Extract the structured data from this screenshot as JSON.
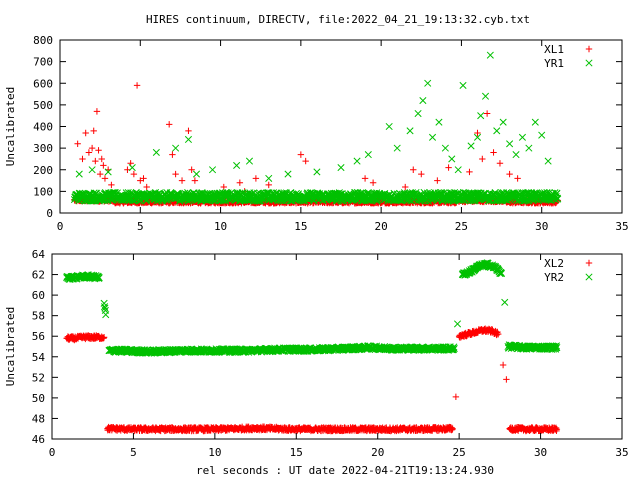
{
  "title": "HIRES continuum, DIRECTV, file:2022_04_21_19:13:32.cyb.txt",
  "colors": {
    "series1": "#ff0000",
    "series2": "#00c000",
    "axis": "#000000"
  },
  "chart_data": [
    {
      "type": "scatter",
      "title": "HIRES continuum, DIRECTV, file:2022_04_21_19:13:32.cyb.txt",
      "xlabel": "",
      "ylabel": "Uncalibrated",
      "xlim": [
        0,
        35
      ],
      "ylim": [
        0,
        800
      ],
      "xticks": [
        0,
        5,
        10,
        15,
        20,
        25,
        30,
        35
      ],
      "yticks": [
        0,
        100,
        200,
        300,
        400,
        500,
        600,
        700,
        800
      ],
      "grid": false,
      "legend_position": "top-right",
      "series": [
        {
          "name": "XL1",
          "marker": "+",
          "color": "#ff0000",
          "baseline_segments": [
            {
              "x_start": 0.9,
              "x_end": 3.3,
              "y": 60
            },
            {
              "x_start": 3.3,
              "x_end": 24.7,
              "y": 52
            },
            {
              "x_start": 24.7,
              "x_end": 27.8,
              "y": 58
            },
            {
              "x_start": 27.8,
              "x_end": 31.0,
              "y": 52
            }
          ],
          "x": [
            1.1,
            1.4,
            1.6,
            1.8,
            2.0,
            2.1,
            2.2,
            2.3,
            2.4,
            2.5,
            2.6,
            2.7,
            2.8,
            3.0,
            3.2,
            4.2,
            4.4,
            4.6,
            4.8,
            5.0,
            5.2,
            5.4,
            6.8,
            7.0,
            7.2,
            7.6,
            8.0,
            8.2,
            8.4,
            10.2,
            11.2,
            11.5,
            12.2,
            13.0,
            15.0,
            15.3,
            19.0,
            19.5,
            21.5,
            22.0,
            22.5,
            23.5,
            24.2,
            25.5,
            26.0,
            26.3,
            26.6,
            27.0,
            27.4,
            28.0,
            28.5
          ],
          "y": [
            320,
            250,
            370,
            280,
            300,
            380,
            240,
            470,
            290,
            180,
            250,
            220,
            160,
            200,
            130,
            200,
            230,
            180,
            590,
            150,
            160,
            120,
            410,
            270,
            180,
            150,
            380,
            200,
            150,
            120,
            140,
            100,
            160,
            130,
            270,
            240,
            160,
            140,
            120,
            200,
            180,
            150,
            210,
            190,
            370,
            250,
            460,
            280,
            230,
            180,
            160
          ]
        },
        {
          "name": "YR1",
          "marker": "x",
          "color": "#00c000",
          "baseline_segments": [
            {
              "x_start": 0.9,
              "x_end": 31.0,
              "y": 75
            }
          ],
          "x": [
            1.2,
            2.0,
            3.0,
            4.5,
            6.0,
            7.2,
            8.0,
            8.5,
            9.5,
            11.0,
            11.8,
            13.0,
            14.2,
            16.0,
            17.5,
            18.5,
            19.2,
            20.5,
            21.0,
            21.8,
            22.3,
            22.6,
            22.9,
            23.2,
            23.6,
            24.0,
            24.4,
            24.8,
            25.1,
            25.6,
            26.0,
            26.2,
            26.5,
            26.8,
            27.2,
            27.6,
            28.0,
            28.4,
            28.8,
            29.2,
            29.6,
            30.0,
            30.4
          ],
          "y": [
            180,
            200,
            190,
            210,
            280,
            300,
            340,
            180,
            200,
            220,
            240,
            160,
            180,
            190,
            210,
            240,
            270,
            400,
            300,
            380,
            460,
            520,
            600,
            350,
            420,
            300,
            250,
            200,
            590,
            310,
            350,
            450,
            540,
            730,
            380,
            420,
            320,
            270,
            350,
            300,
            420,
            360,
            240
          ]
        }
      ]
    },
    {
      "type": "scatter",
      "title": "",
      "xlabel": "rel seconds : UT date 2022-04-21T19:13:24.930",
      "ylabel": "Uncalibrated",
      "xlim": [
        0,
        35
      ],
      "ylim": [
        46,
        64
      ],
      "xticks": [
        0,
        5,
        10,
        15,
        20,
        25,
        30,
        35
      ],
      "yticks": [
        46,
        48,
        50,
        52,
        54,
        56,
        58,
        60,
        62,
        64
      ],
      "grid": false,
      "legend_position": "top-right",
      "series": [
        {
          "name": "XL2",
          "marker": "+",
          "color": "#ff0000",
          "x": [
            0.9,
            1.4,
            1.9,
            2.4,
            2.9,
            3.2,
            3.4,
            3.7,
            5,
            7.5,
            10,
            12.5,
            15,
            17.5,
            20,
            22.5,
            24.6,
            24.8,
            25.0,
            25.5,
            26.0,
            26.5,
            27.0,
            27.4,
            27.7,
            27.9,
            28.1,
            29,
            30,
            31.0
          ],
          "y": [
            55.8,
            55.8,
            55.9,
            55.9,
            55.9,
            55.9,
            47.0,
            47.0,
            46.95,
            46.95,
            46.95,
            47.05,
            46.95,
            46.95,
            46.95,
            46.95,
            47.0,
            50.1,
            56.0,
            56.2,
            56.4,
            56.6,
            56.5,
            56.2,
            53.2,
            51.8,
            47.0,
            46.95,
            46.95,
            46.95
          ]
        },
        {
          "name": "YR2",
          "marker": "x",
          "color": "#00c000",
          "x": [
            0.9,
            1.4,
            1.9,
            2.4,
            2.9,
            3.2,
            3.3,
            3.5,
            4,
            6,
            8,
            10,
            12,
            14,
            16,
            18,
            19.5,
            21,
            23,
            24.7,
            24.9,
            25.2,
            25.7,
            26.2,
            26.7,
            27.2,
            27.6,
            27.8,
            28.0,
            29,
            30,
            31.0
          ],
          "y": [
            61.7,
            61.7,
            61.8,
            61.8,
            61.7,
            59.2,
            58.1,
            54.6,
            54.6,
            54.5,
            54.6,
            54.6,
            54.6,
            54.7,
            54.7,
            54.8,
            54.9,
            54.8,
            54.8,
            54.8,
            57.2,
            62.0,
            62.3,
            62.8,
            63.0,
            62.7,
            62.1,
            59.3,
            55.0,
            54.9,
            54.9,
            54.9
          ]
        }
      ]
    }
  ]
}
